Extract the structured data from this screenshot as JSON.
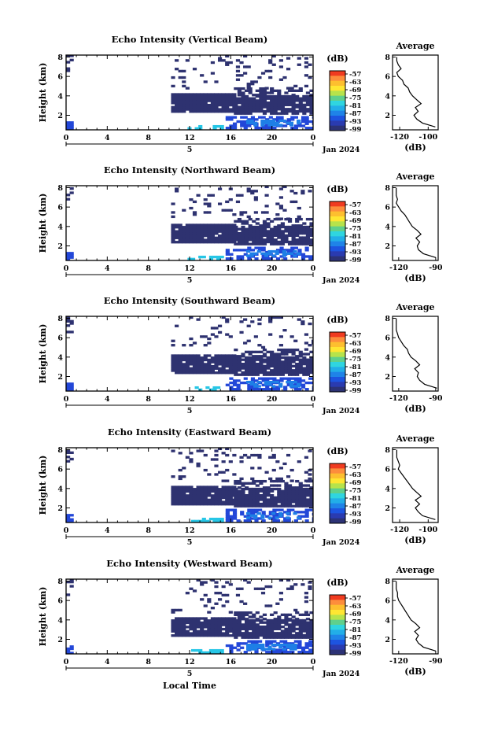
{
  "figure": {
    "xlabel": "Local Time",
    "date_label": "Jan 2024",
    "day_marker": "5",
    "colorbar_unit": "(dB)",
    "colorbar_ticks": [
      "-57",
      "-63",
      "-69",
      "-75",
      "-81",
      "-87",
      "-93",
      "-99"
    ],
    "colorbar_colors": [
      "#f03b20",
      "#fd8d3c",
      "#fdbf2f",
      "#ffe632",
      "#b7e34b",
      "#5fd08c",
      "#2fd5e0",
      "#22aee8",
      "#1f83e8",
      "#1d54e0",
      "#2a3bb0",
      "#2c3275"
    ],
    "avg_title": "Average",
    "avg_xlabel": "(dB)",
    "heatmap_base_color": "#2e3270"
  },
  "chart_data": [
    {
      "type": "heatmap",
      "title": "Echo Intensity (Vertical Beam)",
      "ylabel": "Height (km)",
      "x_ticks": [
        "0",
        "4",
        "8",
        "12",
        "16",
        "20",
        "0"
      ],
      "y_ticks": [
        "2",
        "4",
        "6",
        "8"
      ],
      "xlim": [
        0,
        24
      ],
      "ylim": [
        0.5,
        8.2
      ],
      "avg_x_ticks": [
        "-120",
        "-100"
      ],
      "avg_y_ticks": [
        "2",
        "4",
        "6",
        "8"
      ],
      "avg_xlim": [
        -125,
        -93
      ],
      "avg_profile": {
        "height_km": [
          0.8,
          1.2,
          1.6,
          2.0,
          2.4,
          2.8,
          3.2,
          3.6,
          4.0,
          4.4,
          4.8,
          5.2,
          5.6,
          6.0,
          6.4,
          6.8,
          7.2,
          7.6,
          8.0
        ],
        "db": [
          -95,
          -104,
          -108,
          -110,
          -107,
          -109,
          -105,
          -108,
          -111,
          -113,
          -114,
          -117,
          -118,
          -121,
          -122,
          -119,
          -121,
          -122,
          -122
        ]
      }
    },
    {
      "type": "heatmap",
      "title": "Echo Intensity (Northward Beam)",
      "ylabel": "Height (km)",
      "x_ticks": [
        "0",
        "4",
        "8",
        "12",
        "16",
        "20",
        "0"
      ],
      "y_ticks": [
        "2",
        "4",
        "6",
        "8"
      ],
      "xlim": [
        0,
        24
      ],
      "ylim": [
        0.5,
        8.2
      ],
      "avg_x_ticks": [
        "-120",
        "-90"
      ],
      "avg_y_ticks": [
        "2",
        "4",
        "6",
        "8"
      ],
      "avg_xlim": [
        -125,
        -88
      ],
      "avg_profile": {
        "height_km": [
          0.8,
          1.2,
          1.6,
          2.0,
          2.4,
          2.8,
          3.2,
          3.6,
          4.0,
          4.4,
          4.8,
          5.2,
          5.6,
          6.0,
          6.4,
          6.8,
          7.2,
          7.6,
          8.0
        ],
        "db": [
          -90,
          -100,
          -104,
          -105,
          -103,
          -106,
          -102,
          -105,
          -109,
          -111,
          -113,
          -115,
          -118,
          -120,
          -122,
          -121,
          -122,
          -122,
          -122
        ]
      }
    },
    {
      "type": "heatmap",
      "title": "Echo Intensity (Southward Beam)",
      "ylabel": "Height (km)",
      "x_ticks": [
        "0",
        "4",
        "8",
        "12",
        "16",
        "20",
        "0"
      ],
      "y_ticks": [
        "2",
        "4",
        "6",
        "8"
      ],
      "xlim": [
        0,
        24
      ],
      "ylim": [
        0.5,
        8.2
      ],
      "avg_x_ticks": [
        "-120",
        "-90"
      ],
      "avg_y_ticks": [
        "2",
        "4",
        "6",
        "8"
      ],
      "avg_xlim": [
        -125,
        -88
      ],
      "avg_profile": {
        "height_km": [
          0.8,
          1.2,
          1.6,
          2.0,
          2.4,
          2.8,
          3.2,
          3.6,
          4.0,
          4.4,
          4.8,
          5.2,
          5.6,
          6.0,
          6.4,
          6.8,
          7.2,
          7.6,
          8.0
        ],
        "db": [
          -89,
          -99,
          -103,
          -105,
          -104,
          -107,
          -103,
          -106,
          -110,
          -112,
          -113,
          -116,
          -118,
          -120,
          -121,
          -122,
          -122,
          -122,
          -122
        ]
      }
    },
    {
      "type": "heatmap",
      "title": "Echo Intensity (Eastward Beam)",
      "ylabel": "Height (km)",
      "x_ticks": [
        "0",
        "4",
        "8",
        "12",
        "16",
        "20",
        "0"
      ],
      "y_ticks": [
        "2",
        "4",
        "6",
        "8"
      ],
      "xlim": [
        0,
        24
      ],
      "ylim": [
        0.5,
        8.2
      ],
      "avg_x_ticks": [
        "-120",
        "-100"
      ],
      "avg_y_ticks": [
        "2",
        "4",
        "6",
        "8"
      ],
      "avg_xlim": [
        -125,
        -93
      ],
      "avg_profile": {
        "height_km": [
          0.8,
          1.2,
          1.6,
          2.0,
          2.4,
          2.8,
          3.2,
          3.6,
          4.0,
          4.4,
          4.8,
          5.2,
          5.6,
          6.0,
          6.4,
          6.8,
          7.2,
          7.6,
          8.0
        ],
        "db": [
          -95,
          -104,
          -107,
          -109,
          -106,
          -109,
          -105,
          -108,
          -111,
          -113,
          -115,
          -117,
          -119,
          -121,
          -120,
          -121,
          -122,
          -122,
          -122
        ]
      }
    },
    {
      "type": "heatmap",
      "title": "Echo Intensity (Westward Beam)",
      "ylabel": "Height (km)",
      "x_ticks": [
        "0",
        "4",
        "8",
        "12",
        "16",
        "20",
        "0"
      ],
      "y_ticks": [
        "2",
        "4",
        "6",
        "8"
      ],
      "xlim": [
        0,
        24
      ],
      "ylim": [
        0.5,
        8.2
      ],
      "avg_x_ticks": [
        "-120",
        "-90"
      ],
      "avg_y_ticks": [
        "2",
        "4",
        "6",
        "8"
      ],
      "avg_xlim": [
        -125,
        -88
      ],
      "avg_profile": {
        "height_km": [
          0.8,
          1.2,
          1.6,
          2.0,
          2.4,
          2.8,
          3.2,
          3.6,
          4.0,
          4.4,
          4.8,
          5.2,
          5.6,
          6.0,
          6.4,
          6.8,
          7.2,
          7.6,
          8.0
        ],
        "db": [
          -90,
          -100,
          -104,
          -106,
          -104,
          -107,
          -103,
          -106,
          -110,
          -112,
          -114,
          -116,
          -118,
          -120,
          -121,
          -121,
          -122,
          -122,
          -122
        ]
      }
    }
  ]
}
